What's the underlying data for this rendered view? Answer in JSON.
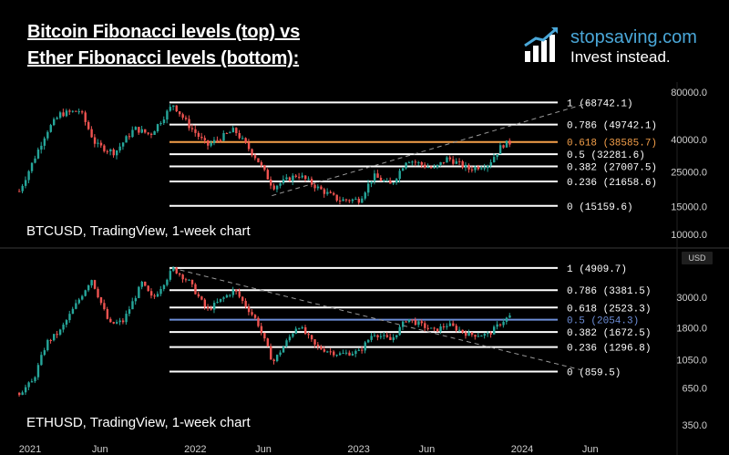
{
  "title": {
    "line1": "Bitcoin Fibonacci levels (top) vs",
    "line2": "Ether Fibonacci levels (bottom):"
  },
  "brand": {
    "name": "stopsaving.com",
    "tagline": "Invest instead.",
    "icon": "bar-chart-growth-icon",
    "color": "#4aa7d8"
  },
  "currency_tag": "USD",
  "x_axis": {
    "ticks": [
      {
        "label": "2021",
        "date": "2021-01"
      },
      {
        "label": "Jun",
        "date": "2021-06"
      },
      {
        "label": "2022",
        "date": "2022-01"
      },
      {
        "label": "Jun",
        "date": "2022-06"
      },
      {
        "label": "2023",
        "date": "2023-01"
      },
      {
        "label": "Jun",
        "date": "2023-06"
      },
      {
        "label": "2024",
        "date": "2024-01"
      },
      {
        "label": "Jun",
        "date": "2024-06"
      }
    ]
  },
  "chart_data": [
    {
      "type": "line",
      "label": "BTCUSD, TradingView, 1-week chart",
      "scale": "log",
      "y_ticks": [
        {
          "label": "80000.0",
          "value": 80000
        },
        {
          "label": "40000.0",
          "value": 40000
        },
        {
          "label": "25000.0",
          "value": 25000
        },
        {
          "label": "15000.0",
          "value": 15000
        },
        {
          "label": "10000.0",
          "value": 10000
        }
      ],
      "fib_levels": [
        {
          "label": "1 (68742.1)",
          "value": 68742.1,
          "color": "#ffffff"
        },
        {
          "label": "0.786 (49742.1)",
          "value": 49742.1,
          "color": "#ffffff"
        },
        {
          "label": "0.618 (38585.7)",
          "value": 38585.7,
          "color": "#f5a04a"
        },
        {
          "label": "0.5 (32281.6)",
          "value": 32281.6,
          "color": "#ffffff"
        },
        {
          "label": "0.382 (27007.5)",
          "value": 27007.5,
          "color": "#ffffff"
        },
        {
          "label": "0.236 (21658.6)",
          "value": 21658.6,
          "color": "#ffffff"
        },
        {
          "label": "0 (15159.6)",
          "value": 15159.6,
          "color": "#ffffff"
        }
      ],
      "price_path": [
        [
          "2020-12-01",
          18800
        ],
        [
          "2021-01-01",
          29000
        ],
        [
          "2021-02-01",
          45000
        ],
        [
          "2021-03-01",
          58000
        ],
        [
          "2021-04-15",
          61000
        ],
        [
          "2021-05-20",
          37000
        ],
        [
          "2021-07-01",
          33000
        ],
        [
          "2021-08-15",
          47000
        ],
        [
          "2021-09-20",
          43000
        ],
        [
          "2021-11-10",
          67000
        ],
        [
          "2021-12-15",
          49000
        ],
        [
          "2022-01-25",
          36500
        ],
        [
          "2022-03-25",
          46000
        ],
        [
          "2022-05-15",
          30000
        ],
        [
          "2022-06-20",
          20000
        ],
        [
          "2022-08-15",
          24000
        ],
        [
          "2022-10-01",
          19500
        ],
        [
          "2022-11-15",
          16500
        ],
        [
          "2022-12-31",
          16600
        ],
        [
          "2023-02-01",
          23500
        ],
        [
          "2023-03-10",
          20500
        ],
        [
          "2023-04-15",
          30000
        ],
        [
          "2023-06-15",
          26000
        ],
        [
          "2023-07-15",
          30500
        ],
        [
          "2023-09-01",
          26000
        ],
        [
          "2023-10-15",
          28000
        ],
        [
          "2023-11-15",
          37000
        ],
        [
          "2023-12-08",
          38500
        ]
      ],
      "trendline": {
        "from": [
          "2022-06-20",
          17600
        ],
        "to": [
          "2024-06-01",
          68742.1
        ]
      }
    },
    {
      "type": "line",
      "label": "ETHUSD, TradingView, 1-week chart",
      "scale": "log",
      "y_ticks": [
        {
          "label": "3000.0",
          "value": 3000
        },
        {
          "label": "1800.0",
          "value": 1800
        },
        {
          "label": "1050.0",
          "value": 1050
        },
        {
          "label": "650.0",
          "value": 650
        },
        {
          "label": "350.0",
          "value": 350
        }
      ],
      "fib_levels": [
        {
          "label": "1 (4909.7)",
          "value": 4909.7,
          "color": "#ffffff"
        },
        {
          "label": "0.786 (3381.5)",
          "value": 3381.5,
          "color": "#ffffff"
        },
        {
          "label": "0.618 (2523.3)",
          "value": 2523.3,
          "color": "#ffffff"
        },
        {
          "label": "0.5 (2054.3)",
          "value": 2054.3,
          "color": "#6d8ed8"
        },
        {
          "label": "0.382 (1672.5)",
          "value": 1672.5,
          "color": "#ffffff"
        },
        {
          "label": "0.236 (1296.8)",
          "value": 1296.8,
          "color": "#ffffff"
        },
        {
          "label": "0 (859.5)",
          "value": 859.5,
          "color": "#ffffff"
        }
      ],
      "price_path": [
        [
          "2020-12-01",
          600
        ],
        [
          "2021-01-01",
          730
        ],
        [
          "2021-02-01",
          1400
        ],
        [
          "2021-03-01",
          1700
        ],
        [
          "2021-05-10",
          4100
        ],
        [
          "2021-06-20",
          1900
        ],
        [
          "2021-07-20",
          2000
        ],
        [
          "2021-09-01",
          3800
        ],
        [
          "2021-09-25",
          2900
        ],
        [
          "2021-11-10",
          4850
        ],
        [
          "2021-12-15",
          3900
        ],
        [
          "2022-01-25",
          2400
        ],
        [
          "2022-03-25",
          3400
        ],
        [
          "2022-05-15",
          2000
        ],
        [
          "2022-06-20",
          1000
        ],
        [
          "2022-08-15",
          1900
        ],
        [
          "2022-09-25",
          1300
        ],
        [
          "2022-11-15",
          1150
        ],
        [
          "2022-12-31",
          1200
        ],
        [
          "2023-02-01",
          1650
        ],
        [
          "2023-03-10",
          1450
        ],
        [
          "2023-04-15",
          2100
        ],
        [
          "2023-06-15",
          1700
        ],
        [
          "2023-07-15",
          1900
        ],
        [
          "2023-09-01",
          1600
        ],
        [
          "2023-10-15",
          1600
        ],
        [
          "2023-11-15",
          2000
        ],
        [
          "2023-12-08",
          2250
        ]
      ],
      "trendline": {
        "from": [
          "2021-11-10",
          4909.7
        ],
        "to": [
          "2024-06-01",
          850
        ]
      }
    }
  ]
}
